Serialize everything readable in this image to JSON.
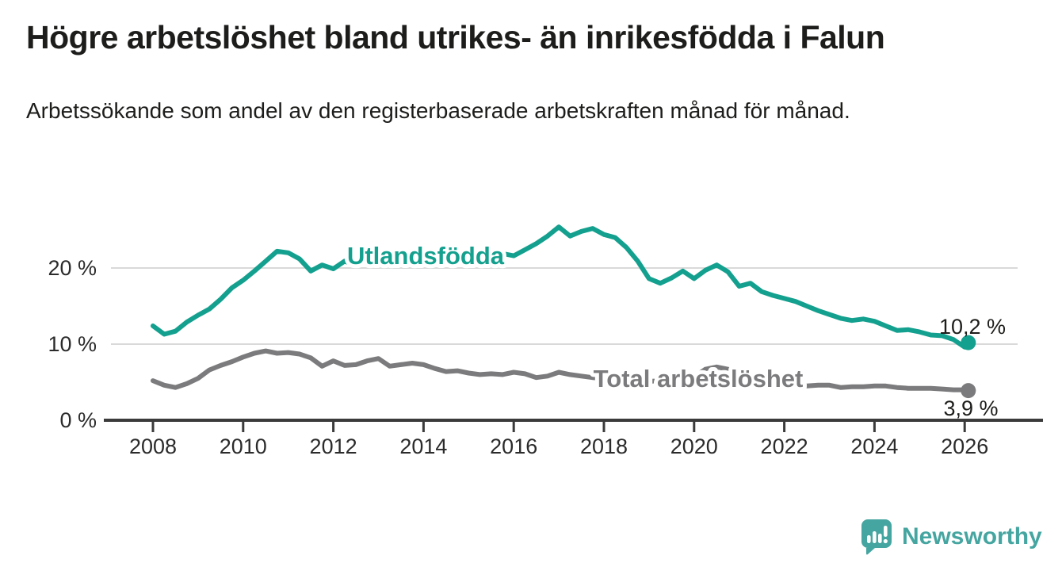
{
  "header": {
    "title": "Högre arbetslöshet bland utrikes- än inrikesfödda i Falun",
    "subtitle": "Arbetssökande som andel av den registerbaserade arbetskraften månad för månad."
  },
  "colors": {
    "teal": "#14a08e",
    "gray": "#7b7b7d",
    "grid": "#d9d9d9",
    "axis": "#3b3b3b",
    "text": "#1d1d1b",
    "logo_teal": "#45a5a0"
  },
  "logo": {
    "text": "Newsworthy",
    "icon": "speech-bubble-bar-chart-icon"
  },
  "chart_data": {
    "type": "line",
    "title": "",
    "xlabel": "",
    "ylabel": "",
    "grid": "horizontal",
    "legend_position": "inline-on-lines",
    "xlim": [
      2007.8,
      2027.2
    ],
    "ylim": [
      0,
      27.5
    ],
    "x_ticks": [
      2008,
      2010,
      2012,
      2014,
      2016,
      2018,
      2020,
      2022,
      2024,
      2026
    ],
    "y_ticks": [
      {
        "value": 0,
        "label": "0 %"
      },
      {
        "value": 10,
        "label": "10 %"
      },
      {
        "value": 20,
        "label": "20 %"
      }
    ],
    "series": [
      {
        "name": "Utlandsfödda",
        "color": "#14a08e",
        "end_label": "10,2 %",
        "end_value": 10.2,
        "x": [
          2008.0,
          2008.25,
          2008.5,
          2008.75,
          2009.0,
          2009.25,
          2009.5,
          2009.75,
          2010.0,
          2010.25,
          2010.5,
          2010.75,
          2011.0,
          2011.25,
          2011.5,
          2011.75,
          2012.0,
          2012.25,
          2012.5,
          2012.75,
          2013.0,
          2013.25,
          2013.5,
          2013.75,
          2014.0,
          2014.25,
          2014.5,
          2014.75,
          2015.0,
          2015.25,
          2015.5,
          2015.75,
          2016.0,
          2016.25,
          2016.5,
          2016.75,
          2017.0,
          2017.25,
          2017.5,
          2017.75,
          2018.0,
          2018.25,
          2018.5,
          2018.75,
          2019.0,
          2019.25,
          2019.5,
          2019.75,
          2020.0,
          2020.25,
          2020.5,
          2020.75,
          2021.0,
          2021.25,
          2021.5,
          2021.75,
          2022.0,
          2022.25,
          2022.5,
          2022.75,
          2023.0,
          2023.25,
          2023.5,
          2023.75,
          2024.0,
          2024.25,
          2024.5,
          2024.75,
          2025.0,
          2025.25,
          2025.5,
          2025.75,
          2026.0,
          2026.08
        ],
        "values": [
          12.4,
          11.3,
          11.7,
          12.9,
          13.8,
          14.6,
          15.9,
          17.4,
          18.4,
          19.6,
          20.9,
          22.2,
          22.0,
          21.2,
          19.6,
          20.4,
          19.9,
          20.9,
          20.3,
          20.9,
          21.1,
          21.0,
          21.3,
          21.5,
          21.4,
          21.6,
          21.8,
          21.7,
          21.9,
          21.8,
          22.0,
          21.9,
          21.6,
          22.4,
          23.2,
          24.2,
          25.4,
          24.2,
          24.8,
          25.2,
          24.4,
          24.0,
          22.7,
          20.9,
          18.6,
          18.0,
          18.7,
          19.6,
          18.6,
          19.7,
          20.4,
          19.5,
          17.6,
          18.0,
          16.9,
          16.4,
          16.0,
          15.6,
          15.0,
          14.4,
          13.9,
          13.4,
          13.1,
          13.3,
          13.0,
          12.4,
          11.8,
          11.9,
          11.6,
          11.2,
          11.1,
          10.6,
          9.6,
          10.2
        ]
      },
      {
        "name": "Total arbetslöshet",
        "color": "#7b7b7d",
        "end_label": "3,9 %",
        "end_value": 3.9,
        "x": [
          2008.0,
          2008.25,
          2008.5,
          2008.75,
          2009.0,
          2009.25,
          2009.5,
          2009.75,
          2010.0,
          2010.25,
          2010.5,
          2010.75,
          2011.0,
          2011.25,
          2011.5,
          2011.75,
          2012.0,
          2012.25,
          2012.5,
          2012.75,
          2013.0,
          2013.25,
          2013.5,
          2013.75,
          2014.0,
          2014.25,
          2014.5,
          2014.75,
          2015.0,
          2015.25,
          2015.5,
          2015.75,
          2016.0,
          2016.25,
          2016.5,
          2016.75,
          2017.0,
          2017.25,
          2017.5,
          2017.75,
          2018.0,
          2018.25,
          2018.5,
          2018.75,
          2019.0,
          2019.25,
          2019.5,
          2019.75,
          2020.0,
          2020.25,
          2020.5,
          2020.75,
          2021.0,
          2021.25,
          2021.5,
          2021.75,
          2022.0,
          2022.25,
          2022.5,
          2022.75,
          2023.0,
          2023.25,
          2023.5,
          2023.75,
          2024.0,
          2024.25,
          2024.5,
          2024.75,
          2025.0,
          2025.25,
          2025.5,
          2025.75,
          2026.0,
          2026.08
        ],
        "values": [
          5.2,
          4.6,
          4.3,
          4.8,
          5.5,
          6.6,
          7.2,
          7.7,
          8.3,
          8.8,
          9.1,
          8.8,
          8.9,
          8.7,
          8.2,
          7.1,
          7.8,
          7.2,
          7.3,
          7.8,
          8.1,
          7.1,
          7.3,
          7.5,
          7.3,
          6.8,
          6.4,
          6.5,
          6.2,
          6.0,
          6.1,
          6.0,
          6.3,
          6.1,
          5.6,
          5.8,
          6.3,
          6.0,
          5.8,
          5.6,
          5.5,
          5.3,
          5.3,
          5.2,
          5.1,
          5.2,
          5.4,
          5.5,
          5.7,
          6.7,
          7.0,
          6.7,
          6.3,
          5.9,
          5.5,
          5.1,
          4.9,
          4.7,
          4.5,
          4.6,
          4.6,
          4.3,
          4.4,
          4.4,
          4.5,
          4.5,
          4.3,
          4.2,
          4.2,
          4.2,
          4.1,
          4.0,
          4.0,
          3.9
        ]
      }
    ]
  }
}
